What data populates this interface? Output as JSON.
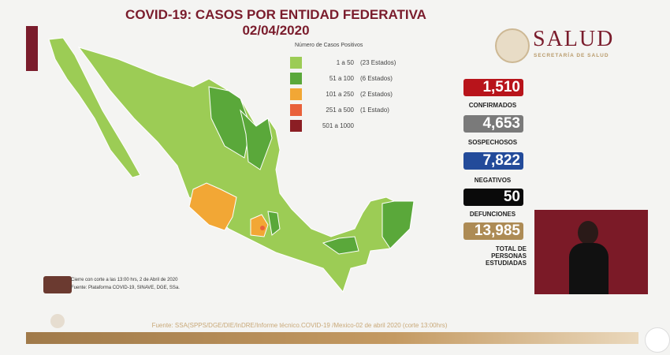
{
  "title": {
    "line1": "COVID-19: CASOS POR ENTIDAD FEDERATIVA",
    "line2": "02/04/2020"
  },
  "logo": {
    "name": "SALUD",
    "subtitle": "SECRETARÍA DE SALUD"
  },
  "legend": {
    "title": "Número de Casos Positivos",
    "items": [
      {
        "range": "1 a   50",
        "count": "(23 Estados)",
        "color": "#9ccc55"
      },
      {
        "range": "51 a  100",
        "count": "(6 Estados)",
        "color": "#5aa83a"
      },
      {
        "range": "101 a  250",
        "count": "(2 Estados)",
        "color": "#f2a735"
      },
      {
        "range": "251 a  500",
        "count": "(1 Estado)",
        "color": "#e9613a"
      },
      {
        "range": "501 a 1000",
        "count": "",
        "color": "#8b1e24"
      }
    ]
  },
  "stats": [
    {
      "value": "1,510",
      "label": "CONFIRMADOS",
      "color": "#b8141b"
    },
    {
      "value": "4,653",
      "label": "SOSPECHOSOS",
      "color": "#7a7a7a"
    },
    {
      "value": "7,822",
      "label": "NEGATIVOS",
      "color": "#234b9a"
    },
    {
      "value": "50",
      "label": "DEFUNCIONES",
      "color": "#0a0a0a"
    },
    {
      "value": "13,985",
      "label_lines": [
        "TOTAL DE",
        "PERSONAS",
        "ESTUDIADAS"
      ],
      "color": "#ad8b55"
    }
  ],
  "notes": {
    "line1": "Cierre con corte a las 13:00 hrs, 2 de Abril de 2020",
    "line2": "Fuente: Plataforma COVID-19, SINAVE, DGE, SSa."
  },
  "source": "Fuente: SSA(SPPS/DGE/DIE/InDRE/Informe técnico.COVID-19 /Mexico-02 de abril 2020 (corte 13:00hrs)"
}
